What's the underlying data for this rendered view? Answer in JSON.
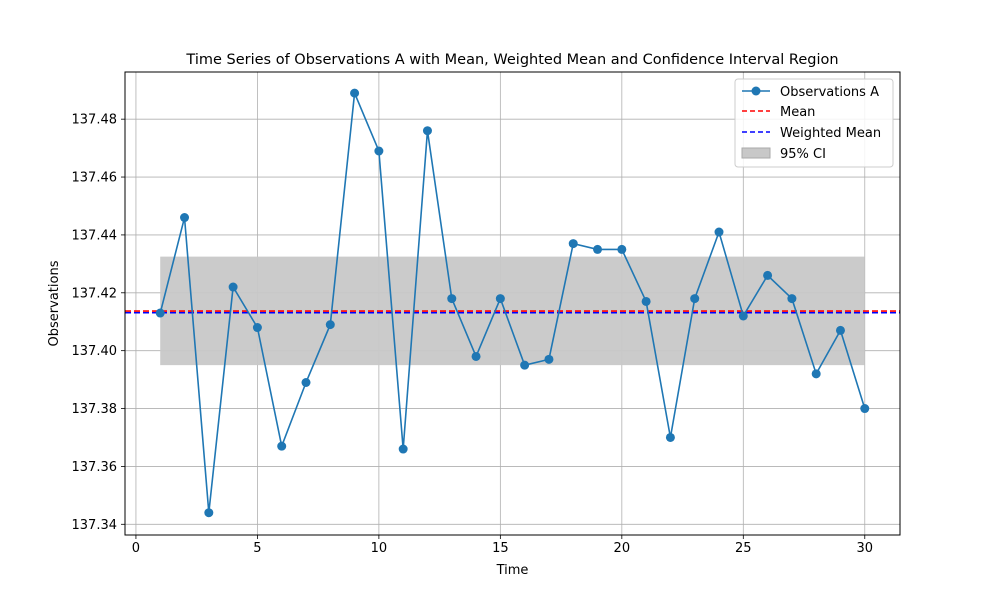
{
  "chart_data": {
    "type": "line",
    "title": "Time Series of Observations A with Mean, Weighted Mean and Confidence Interval Region",
    "xlabel": "Time",
    "ylabel": "Observations",
    "xlim": [
      -0.45,
      31.45
    ],
    "ylim": [
      137.3363,
      137.4963
    ],
    "x_ticks": [
      0,
      5,
      10,
      15,
      20,
      25,
      30
    ],
    "y_ticks": [
      137.34,
      137.36,
      137.38,
      137.4,
      137.42,
      137.44,
      137.46,
      137.48
    ],
    "x_tick_labels": [
      "0",
      "5",
      "10",
      "15",
      "20",
      "25",
      "30"
    ],
    "y_tick_labels": [
      "137.34",
      "137.36",
      "137.38",
      "137.40",
      "137.42",
      "137.44",
      "137.46",
      "137.48"
    ],
    "grid": true,
    "legend_position": "top-right",
    "series": [
      {
        "name": "Observations A",
        "color": "#1f77b4",
        "x": [
          1,
          2,
          3,
          4,
          5,
          6,
          7,
          8,
          9,
          10,
          11,
          12,
          13,
          14,
          15,
          16,
          17,
          18,
          19,
          20,
          21,
          22,
          23,
          24,
          25,
          26,
          27,
          28,
          29,
          30
        ],
        "values": [
          137.413,
          137.446,
          137.344,
          137.422,
          137.408,
          137.367,
          137.389,
          137.409,
          137.489,
          137.469,
          137.366,
          137.476,
          137.418,
          137.398,
          137.418,
          137.395,
          137.397,
          137.437,
          137.435,
          137.435,
          137.417,
          137.37,
          137.418,
          137.441,
          137.412,
          137.426,
          137.418,
          137.392,
          137.407,
          137.38
        ]
      }
    ],
    "mean": {
      "name": "Mean",
      "value": 137.4137,
      "color": "#ff0000"
    },
    "weighted_mean": {
      "name": "Weighted Mean",
      "value": 137.4131,
      "color": "#0000ff"
    },
    "confidence_interval": {
      "name": "95% CI",
      "lower": 137.395,
      "upper": 137.4325,
      "x_range": [
        1,
        30
      ],
      "color": "#c8c8c8"
    }
  }
}
